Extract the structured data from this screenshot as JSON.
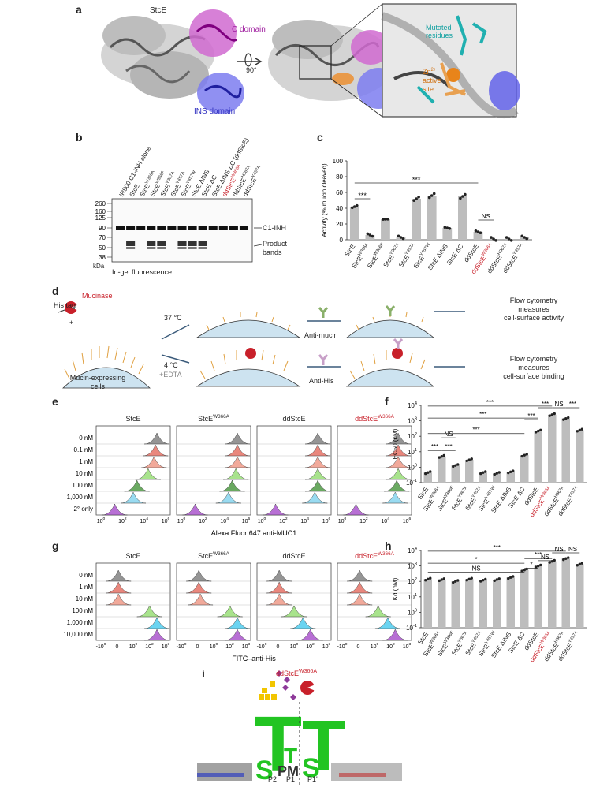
{
  "panels": {
    "a": "a",
    "b": "b",
    "c": "c",
    "d": "d",
    "e": "e",
    "f": "f",
    "g": "g",
    "h": "h",
    "i": "i"
  },
  "panel_a": {
    "stce": "StcE",
    "c_domain": "C domain",
    "ins_domain": "INS domain",
    "rotation": "90°",
    "mutated": "Mutated residues",
    "zn": "Zn",
    "zn_sup": "2+",
    "active_site": "active site"
  },
  "panel_b": {
    "lanes": [
      "IR800 C1-INH alone",
      "StcE",
      "StcE^W366A",
      "StcE^W366F",
      "StcE^Y367A",
      "StcE^Y457A",
      "StcE^Y457W",
      "StcE ΔINS",
      "StcE ΔC",
      "StcE ΔINS ΔC (ddStcE)",
      "ddStcE^W366A",
      "ddStcE^H367A",
      "ddStcE^Y457A"
    ],
    "mw": [
      "260",
      "160",
      "125",
      "90",
      "70",
      "50",
      "38"
    ],
    "kda": "kDa",
    "c1inh": "C1-INH",
    "product": "Product",
    "bands": "bands",
    "caption": "In-gel fluorescence"
  },
  "panel_c": {
    "ylabel": "Activity (% mucin cleaved)",
    "yticks": [
      "0",
      "20",
      "40",
      "60",
      "80",
      "100"
    ],
    "categories": [
      "StcE",
      "StcE^W366A",
      "StcE^W366F",
      "StcE^Y367A",
      "StcE^Y457A",
      "StcE^Y457W",
      "StcE ΔINS",
      "StcE ΔC",
      "ddStcE",
      "ddStcE^W366A",
      "ddStcE^H367A",
      "ddStcE^Y457A"
    ],
    "sig1": "***",
    "sig2": "***",
    "ns": "NS"
  },
  "panel_d": {
    "mucinase": "Mucinase",
    "his_tag": "His tag",
    "plus": "+",
    "cond1": "37 °C",
    "cond2": "4 °C",
    "cond2b": "+EDTA",
    "cells": "Mucin-expressing cells",
    "anti_mucin": "Anti-mucin",
    "anti_his": "Anti-His",
    "out1_a": "Flow cytometry",
    "out1_b": "measures",
    "out1_c": "cell-surface activity",
    "out2_a": "Flow cytometry",
    "out2_b": "measures",
    "out2_c": "cell-surface binding"
  },
  "panel_e": {
    "titles": [
      "StcE",
      "StcE^W366A",
      "ddStcE",
      "ddStcE^W366A"
    ],
    "rows": [
      "0 nM",
      "0.1 nM",
      "1 nM",
      "10 nM",
      "100 nM",
      "1,000 nM",
      "2° only"
    ],
    "xticks": [
      "10^0",
      "10^2",
      "10^4",
      "10^6"
    ],
    "xlabel": "Alexa Fluor 647 anti-MUC1"
  },
  "panel_f": {
    "ylabel": "EC50 (nM)",
    "yticks": [
      "10^-1",
      "10^0",
      "10^1",
      "10^2",
      "10^3",
      "10^4"
    ],
    "categories": [
      "StcE",
      "StcE^W366A",
      "StcE^W366F",
      "StcE^Y367A",
      "StcE^Y457A",
      "StcE^Y457W",
      "StcE ΔINS",
      "StcE ΔC",
      "ddStcE",
      "ddStcE^W366A",
      "ddStcE^H367A",
      "ddStcE^Y457A"
    ],
    "sigs": [
      "***",
      "NS",
      "***",
      "***",
      "***",
      "***",
      "***",
      "***",
      "NS",
      "***"
    ]
  },
  "panel_g": {
    "titles": [
      "StcE",
      "StcE^W366A",
      "ddStcE",
      "ddStcE^W366A"
    ],
    "rows": [
      "0 nM",
      "1 nM",
      "10 nM",
      "100 nM",
      "1,000 nM",
      "10,000 nM"
    ],
    "xticks": [
      "-10^0",
      "0",
      "10^0",
      "10^2",
      "10^3"
    ],
    "xlabel": "FITC–anti-His"
  },
  "panel_h": {
    "ylabel": "Kd (nM)",
    "yticks": [
      "10^-1",
      "10^0",
      "10^1",
      "10^2",
      "10^3",
      "10^4"
    ],
    "categories": [
      "StcE",
      "StcE^W366A",
      "StcE^W366F",
      "StcE^Y367A",
      "StcE^Y457A",
      "StcE^Y457W",
      "StcE ΔINS",
      "StcE ΔC",
      "ddStcE",
      "ddStcE^W366A",
      "ddStcE^H367A",
      "ddStcE^Y457A"
    ],
    "sigs": [
      "***",
      "*",
      "NS",
      "***",
      "*",
      "NS",
      "NS",
      "NS"
    ]
  },
  "panel_i": {
    "enzyme": "ddStcE^W366A",
    "positions": [
      "P2",
      "P1",
      "P1'"
    ]
  },
  "chart_data": [
    {
      "panel": "c",
      "type": "bar",
      "categories": [
        "StcE",
        "StcE^W366A",
        "StcE^W366F",
        "StcE^Y367A",
        "StcE^Y457A",
        "StcE^Y457W",
        "StcE ΔINS",
        "StcE ΔC",
        "ddStcE",
        "ddStcE^W366A",
        "ddStcE^H367A",
        "ddStcE^Y457A"
      ],
      "values": [
        42,
        6,
        26,
        3,
        52,
        56,
        15,
        55,
        10,
        1,
        1,
        3
      ],
      "ylim": [
        0,
        100
      ],
      "ylabel": "Activity (% mucin cleaved)",
      "red": [
        9
      ]
    },
    {
      "panel": "f",
      "type": "bar",
      "scale": "log",
      "categories": [
        "StcE",
        "StcE^W366A",
        "StcE^W366F",
        "StcE^Y367A",
        "StcE^Y457A",
        "StcE^Y457W",
        "StcE ΔINS",
        "StcE ΔC",
        "ddStcE",
        "ddStcE^W366A",
        "ddStcE^H367A",
        "ddStcE^Y457A"
      ],
      "values": [
        0.45,
        5,
        1.3,
        3,
        0.45,
        0.4,
        0.5,
        6,
        220,
        2500,
        1400,
        250
      ],
      "ylim": [
        0.1,
        10000
      ],
      "ylabel": "EC50 (nM)",
      "red": [
        9
      ]
    },
    {
      "panel": "h",
      "type": "bar",
      "scale": "log",
      "categories": [
        "StcE",
        "StcE^W366A",
        "StcE^W366F",
        "StcE^Y367A",
        "StcE^Y457A",
        "StcE^Y457W",
        "StcE ΔINS",
        "StcE ΔC",
        "ddStcE",
        "ddStcE^W366A",
        "ddStcE^H367A",
        "ddStcE^Y457A"
      ],
      "values": [
        140,
        130,
        100,
        140,
        120,
        130,
        180,
        550,
        1000,
        2000,
        3000,
        1300
      ],
      "ylim": [
        0.1,
        10000
      ],
      "ylabel": "Kd (nM)",
      "red": [
        9
      ]
    }
  ]
}
